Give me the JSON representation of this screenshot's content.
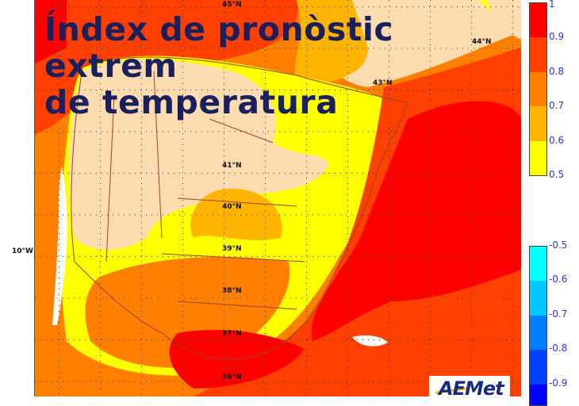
{
  "title": {
    "lines": [
      "Índex de pronòstic",
      "extrem",
      "de temperatura"
    ]
  },
  "latitude_labels": [
    "45°N",
    "44°N",
    "43°N",
    "41°N",
    "40°N",
    "39°N",
    "38°N",
    "37°N",
    "36°N"
  ],
  "longitude_labels": [
    "10°W"
  ],
  "legend_positive": {
    "ticks": [
      "1",
      "0.9",
      "0.8",
      "0.7",
      "0.6",
      "0.5"
    ],
    "colors": [
      "#ff0000",
      "#ff4000",
      "#ff8000",
      "#ffb400",
      "#ffff00"
    ]
  },
  "legend_negative": {
    "ticks": [
      "-0.5",
      "-0.6",
      "-0.7",
      "-0.8",
      "-0.9"
    ],
    "colors": [
      "#00ffff",
      "#00c8ff",
      "#0080ff",
      "#0040ff",
      "#0000ff"
    ]
  },
  "colors": {
    "land_no_signal": "#fddcb0",
    "title": "#1a1f5e",
    "sea_no_data": "#ffffff"
  },
  "logo": {
    "text": "AEMet"
  }
}
